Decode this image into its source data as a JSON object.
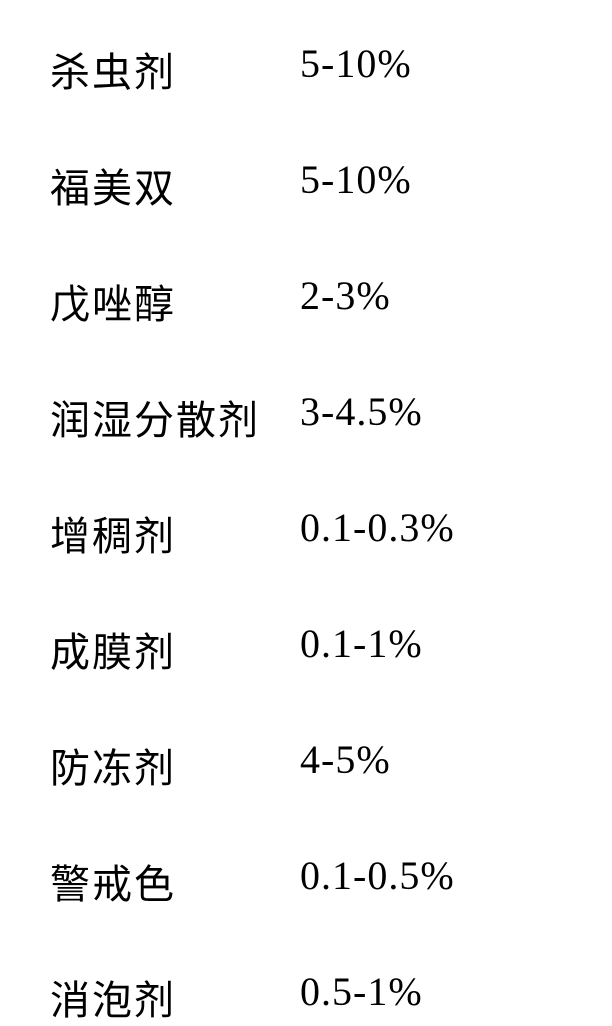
{
  "table": {
    "rows": [
      {
        "label": "杀虫剂",
        "value": "5-10%"
      },
      {
        "label": "福美双",
        "value": "5-10%"
      },
      {
        "label": "戊唑醇",
        "value": "2-3%"
      },
      {
        "label": "润湿分散剂",
        "value": "3-4.5%"
      },
      {
        "label": "增稠剂",
        "value": "0.1-0.3%"
      },
      {
        "label": "成膜剂",
        "value": "0.1-1%"
      },
      {
        "label": "防冻剂",
        "value": "4-5%"
      },
      {
        "label": "警戒色",
        "value": "0.1-0.5%"
      },
      {
        "label": "消泡剂",
        "value": "0.5-1%"
      }
    ],
    "styling": {
      "font_family": "SimSun",
      "font_size": 40,
      "text_color": "#000000",
      "background_color": "#ffffff",
      "label_column_width": 250,
      "row_spacing": 58
    }
  }
}
